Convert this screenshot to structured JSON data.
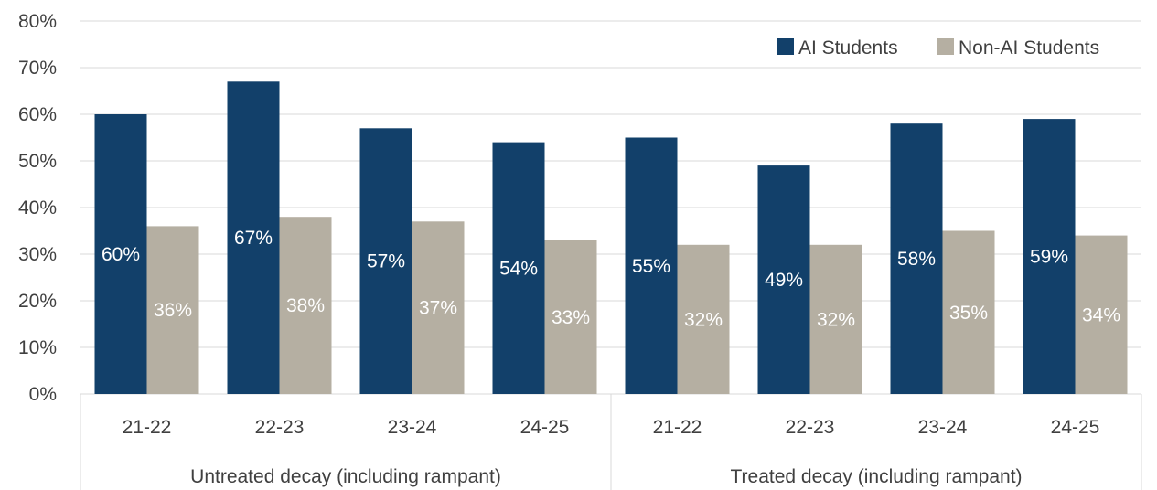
{
  "chart_data": {
    "type": "bar",
    "title": "",
    "xlabel": "",
    "ylabel": "",
    "ylim": [
      0,
      80
    ],
    "y_ticks": [
      "0%",
      "10%",
      "20%",
      "30%",
      "40%",
      "50%",
      "60%",
      "70%",
      "80%"
    ],
    "grid": true,
    "legend_position": "top-right",
    "groups": [
      {
        "label": "Untreated decay (including rampant)",
        "categories": [
          "21-22",
          "22-23",
          "23-24",
          "24-25"
        ]
      },
      {
        "label": "Treated decay (including rampant)",
        "categories": [
          "21-22",
          "22-23",
          "23-24",
          "24-25"
        ]
      }
    ],
    "categories": [
      "21-22",
      "22-23",
      "23-24",
      "24-25",
      "21-22",
      "22-23",
      "23-24",
      "24-25"
    ],
    "series": [
      {
        "name": "AI Students",
        "color": "#12406A",
        "values": [
          60,
          67,
          57,
          54,
          55,
          49,
          58,
          59
        ],
        "labels": [
          "60%",
          "67%",
          "57%",
          "54%",
          "55%",
          "49%",
          "58%",
          "59%"
        ]
      },
      {
        "name": "Non-AI Students",
        "color": "#B5AFA2",
        "values": [
          36,
          38,
          37,
          33,
          32,
          32,
          35,
          34
        ],
        "labels": [
          "36%",
          "38%",
          "37%",
          "33%",
          "32%",
          "32%",
          "35%",
          "34%"
        ]
      }
    ]
  }
}
